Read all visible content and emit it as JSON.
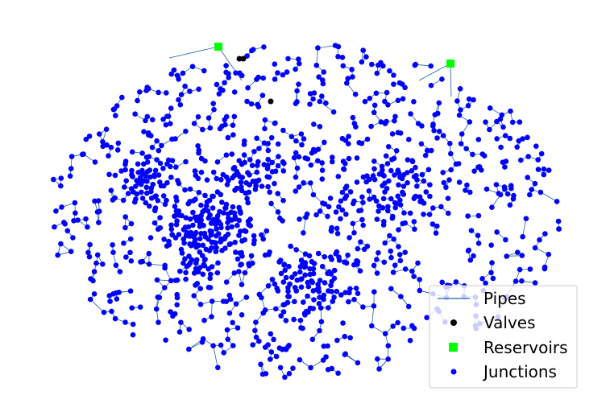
{
  "legend": {
    "items": [
      {
        "label": "Pipes",
        "symbol": "line",
        "color": "#1f5fa8"
      },
      {
        "label": "Valves",
        "symbol": "circle",
        "color": "#000000"
      },
      {
        "label": "Reservoirs",
        "symbol": "square",
        "color": "#00ff00"
      },
      {
        "label": "Junctions",
        "symbol": "circle",
        "color": "#0000ff"
      }
    ]
  },
  "colors": {
    "pipe": "#1f5fa8",
    "junction": "#0000ff",
    "valve": "#000000",
    "reservoir": "#00ff00"
  }
}
